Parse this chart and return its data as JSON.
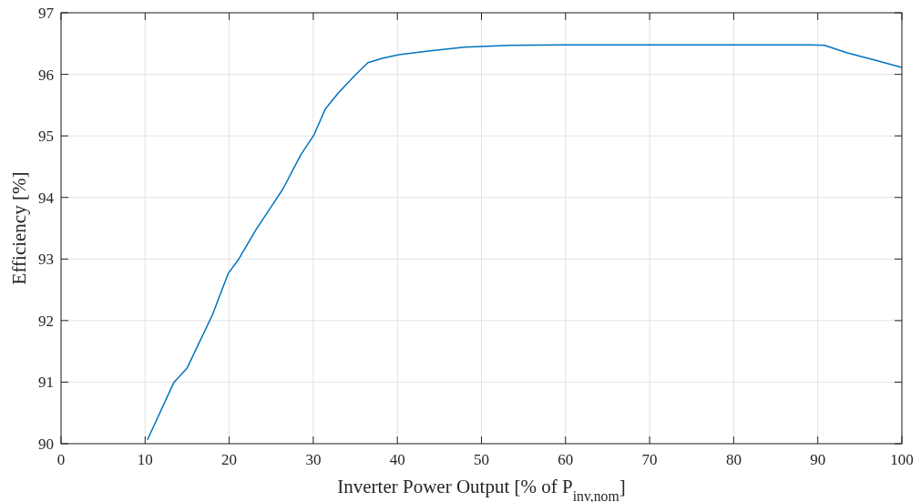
{
  "chart_data": {
    "type": "line",
    "xlabel": "Inverter Power Output [% of P$_{inv,nom}$]",
    "ylabel": "Efficiency [%]",
    "xlim": [
      0,
      100
    ],
    "xticks": [
      0,
      10,
      20,
      30,
      40,
      50,
      60,
      70,
      80,
      90,
      100
    ],
    "ylim": [
      90,
      97
    ],
    "yticks": [
      90,
      91,
      92,
      93,
      94,
      95,
      96,
      97
    ],
    "grid": true,
    "line_style": "solid",
    "series": [
      {
        "color": "#0072bd",
        "x": [
          10.3,
          13.4,
          15.0,
          18.0,
          19.9,
          21.1,
          23.2,
          25.0,
          26.4,
          28.5,
          30.1,
          31.4,
          33.0,
          35.0,
          36.5,
          38.2,
          40.2,
          43.7,
          48.0,
          53.4,
          59.9,
          68.6,
          79.4,
          89.2,
          90.8,
          93.5,
          96.8,
          100
        ],
        "values": [
          90.07,
          90.99,
          91.23,
          92.09,
          92.77,
          92.99,
          93.48,
          93.85,
          94.14,
          94.69,
          95.02,
          95.43,
          95.7,
          95.99,
          96.19,
          96.26,
          96.32,
          96.38,
          96.44,
          96.47,
          96.48,
          96.48,
          96.48,
          96.48,
          96.47,
          96.35,
          96.23,
          96.11
        ]
      }
    ]
  }
}
